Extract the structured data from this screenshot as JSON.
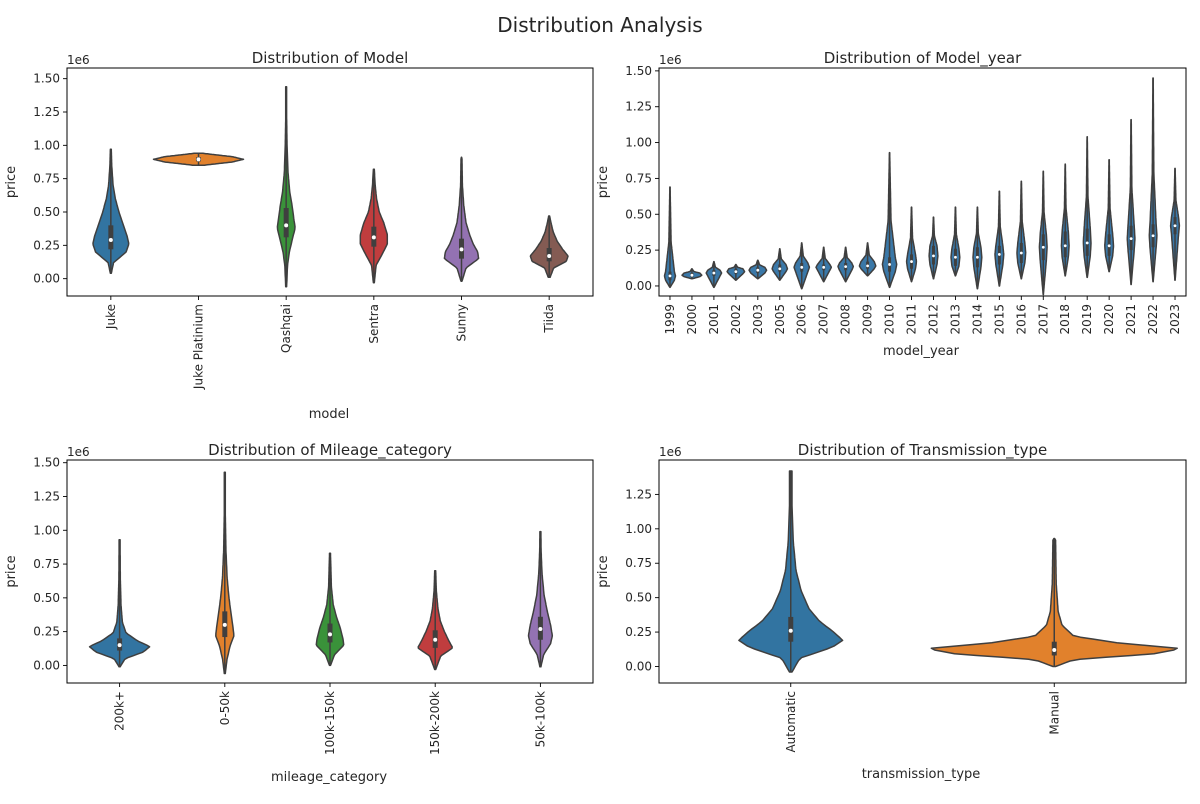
{
  "figure": {
    "title": "Distribution Analysis"
  },
  "chart_data": [
    {
      "type": "violin",
      "title": "Distribution of Model",
      "xlabel": "model",
      "ylabel": "price",
      "y_offset_text": "1e6",
      "ylim": [
        -0.13,
        1.58
      ],
      "yticks": [
        0.0,
        0.25,
        0.5,
        0.75,
        1.0,
        1.25,
        1.5
      ],
      "ytick_labels": [
        "0.00",
        "0.25",
        "0.50",
        "0.75",
        "1.00",
        "1.25",
        "1.50"
      ],
      "categories": [
        "Juke",
        "Juke Platinium",
        "Qashqai",
        "Sentra",
        "Sunny",
        "Tiida"
      ],
      "colors": [
        "#3274a1",
        "#e1812c",
        "#3a923a",
        "#c03d3e",
        "#9372b2",
        "#845b53"
      ],
      "violins": [
        {
          "min": 0.04,
          "max": 0.97,
          "q1": 0.22,
          "median": 0.29,
          "q3": 0.4,
          "profile": [
            [
              0.04,
              0.01
            ],
            [
              0.12,
              0.06
            ],
            [
              0.2,
              0.34
            ],
            [
              0.26,
              0.4
            ],
            [
              0.32,
              0.36
            ],
            [
              0.4,
              0.28
            ],
            [
              0.5,
              0.18
            ],
            [
              0.6,
              0.1
            ],
            [
              0.7,
              0.05
            ],
            [
              0.85,
              0.02
            ],
            [
              0.97,
              0.01
            ]
          ]
        },
        {
          "min": 0.85,
          "max": 0.94,
          "q1": 0.88,
          "median": 0.895,
          "q3": 0.91,
          "profile": [
            [
              0.85,
              0.1
            ],
            [
              0.875,
              0.75
            ],
            [
              0.895,
              1.0
            ],
            [
              0.915,
              0.75
            ],
            [
              0.94,
              0.1
            ]
          ]
        },
        {
          "min": -0.06,
          "max": 1.44,
          "q1": 0.31,
          "median": 0.4,
          "q3": 0.53,
          "profile": [
            [
              -0.06,
              0.01
            ],
            [
              0.1,
              0.03
            ],
            [
              0.2,
              0.07
            ],
            [
              0.3,
              0.14
            ],
            [
              0.38,
              0.2
            ],
            [
              0.45,
              0.17
            ],
            [
              0.55,
              0.13
            ],
            [
              0.65,
              0.08
            ],
            [
              0.8,
              0.04
            ],
            [
              1.0,
              0.02
            ],
            [
              1.2,
              0.01
            ],
            [
              1.44,
              0.01
            ]
          ]
        },
        {
          "min": -0.03,
          "max": 0.82,
          "q1": 0.24,
          "median": 0.31,
          "q3": 0.39,
          "profile": [
            [
              -0.03,
              0.01
            ],
            [
              0.1,
              0.05
            ],
            [
              0.18,
              0.18
            ],
            [
              0.26,
              0.3
            ],
            [
              0.33,
              0.3
            ],
            [
              0.42,
              0.22
            ],
            [
              0.5,
              0.12
            ],
            [
              0.6,
              0.06
            ],
            [
              0.7,
              0.03
            ],
            [
              0.82,
              0.01
            ]
          ]
        },
        {
          "min": -0.02,
          "max": 0.91,
          "q1": 0.15,
          "median": 0.22,
          "q3": 0.3,
          "profile": [
            [
              -0.02,
              0.01
            ],
            [
              0.08,
              0.1
            ],
            [
              0.15,
              0.38
            ],
            [
              0.2,
              0.36
            ],
            [
              0.26,
              0.26
            ],
            [
              0.33,
              0.18
            ],
            [
              0.42,
              0.1
            ],
            [
              0.55,
              0.05
            ],
            [
              0.7,
              0.02
            ],
            [
              0.91,
              0.01
            ]
          ]
        },
        {
          "min": 0.01,
          "max": 0.47,
          "q1": 0.13,
          "median": 0.17,
          "q3": 0.23,
          "profile": [
            [
              0.01,
              0.02
            ],
            [
              0.08,
              0.1
            ],
            [
              0.13,
              0.38
            ],
            [
              0.17,
              0.42
            ],
            [
              0.22,
              0.3
            ],
            [
              0.28,
              0.18
            ],
            [
              0.35,
              0.09
            ],
            [
              0.42,
              0.04
            ],
            [
              0.47,
              0.01
            ]
          ]
        }
      ]
    },
    {
      "type": "violin",
      "title": "Distribution of Model_year",
      "xlabel": "model_year",
      "ylabel": "price",
      "y_offset_text": "1e6",
      "ylim": [
        -0.07,
        1.52
      ],
      "yticks": [
        0.0,
        0.25,
        0.5,
        0.75,
        1.0,
        1.25,
        1.5
      ],
      "ytick_labels": [
        "0.00",
        "0.25",
        "0.50",
        "0.75",
        "1.00",
        "1.25",
        "1.50"
      ],
      "categories": [
        "1999",
        "2000",
        "2001",
        "2002",
        "2003",
        "2005",
        "2006",
        "2007",
        "2008",
        "2009",
        "2010",
        "2011",
        "2012",
        "2013",
        "2014",
        "2015",
        "2016",
        "2017",
        "2018",
        "2019",
        "2020",
        "2021",
        "2022",
        "2023"
      ],
      "violins": [
        {
          "min": -0.01,
          "max": 0.69,
          "median": 0.07,
          "q1": 0.04,
          "q3": 0.1,
          "width": 0.5
        },
        {
          "min": 0.05,
          "max": 0.12,
          "median": 0.075,
          "q1": 0.065,
          "q3": 0.09,
          "width": 0.9
        },
        {
          "min": -0.01,
          "max": 0.17,
          "median": 0.09,
          "q1": 0.07,
          "q3": 0.11,
          "width": 0.7
        },
        {
          "min": 0.04,
          "max": 0.15,
          "median": 0.1,
          "q1": 0.085,
          "q3": 0.12,
          "width": 0.8
        },
        {
          "min": 0.05,
          "max": 0.18,
          "median": 0.11,
          "q1": 0.09,
          "q3": 0.13,
          "width": 0.8
        },
        {
          "min": 0.04,
          "max": 0.26,
          "median": 0.12,
          "q1": 0.1,
          "q3": 0.15,
          "width": 0.7
        },
        {
          "min": -0.02,
          "max": 0.3,
          "median": 0.13,
          "q1": 0.1,
          "q3": 0.16,
          "width": 0.7
        },
        {
          "min": 0.03,
          "max": 0.27,
          "median": 0.13,
          "q1": 0.11,
          "q3": 0.15,
          "width": 0.7
        },
        {
          "min": 0.03,
          "max": 0.27,
          "median": 0.135,
          "q1": 0.11,
          "q3": 0.16,
          "width": 0.7
        },
        {
          "min": 0.07,
          "max": 0.3,
          "median": 0.14,
          "q1": 0.12,
          "q3": 0.17,
          "width": 0.75
        },
        {
          "min": -0.01,
          "max": 0.93,
          "median": 0.15,
          "q1": 0.1,
          "q3": 0.2,
          "width": 0.65
        },
        {
          "min": 0.03,
          "max": 0.55,
          "median": 0.17,
          "q1": 0.12,
          "q3": 0.22,
          "width": 0.45
        },
        {
          "min": 0.05,
          "max": 0.48,
          "median": 0.21,
          "q1": 0.15,
          "q3": 0.28,
          "width": 0.4
        },
        {
          "min": 0.07,
          "max": 0.55,
          "median": 0.2,
          "q1": 0.14,
          "q3": 0.26,
          "width": 0.4
        },
        {
          "min": -0.02,
          "max": 0.55,
          "median": 0.2,
          "q1": 0.13,
          "q3": 0.27,
          "width": 0.4
        },
        {
          "min": 0.0,
          "max": 0.66,
          "median": 0.22,
          "q1": 0.15,
          "q3": 0.28,
          "width": 0.4
        },
        {
          "min": 0.05,
          "max": 0.73,
          "median": 0.23,
          "q1": 0.16,
          "q3": 0.3,
          "width": 0.4
        },
        {
          "min": -0.06,
          "max": 0.8,
          "median": 0.27,
          "q1": 0.18,
          "q3": 0.36,
          "width": 0.35
        },
        {
          "min": 0.07,
          "max": 0.85,
          "median": 0.28,
          "q1": 0.2,
          "q3": 0.38,
          "width": 0.35
        },
        {
          "min": 0.06,
          "max": 1.04,
          "median": 0.3,
          "q1": 0.21,
          "q3": 0.4,
          "width": 0.35
        },
        {
          "min": 0.1,
          "max": 0.88,
          "median": 0.28,
          "q1": 0.21,
          "q3": 0.36,
          "width": 0.4
        },
        {
          "min": 0.01,
          "max": 1.16,
          "median": 0.33,
          "q1": 0.25,
          "q3": 0.42,
          "width": 0.35
        },
        {
          "min": 0.03,
          "max": 1.45,
          "median": 0.35,
          "q1": 0.27,
          "q3": 0.43,
          "width": 0.35
        },
        {
          "min": 0.04,
          "max": 0.82,
          "median": 0.42,
          "q1": 0.36,
          "q3": 0.48,
          "width": 0.4
        }
      ]
    },
    {
      "type": "violin",
      "title": "Distribution of Mileage_category",
      "xlabel": "mileage_category",
      "ylabel": "price",
      "y_offset_text": "1e6",
      "ylim": [
        -0.13,
        1.52
      ],
      "yticks": [
        0.0,
        0.25,
        0.5,
        0.75,
        1.0,
        1.25,
        1.5
      ],
      "ytick_labels": [
        "0.00",
        "0.25",
        "0.50",
        "0.75",
        "1.00",
        "1.25",
        "1.50"
      ],
      "categories": [
        "200k+",
        "0-50k",
        "100k-150k",
        "150k-200k",
        "50k-100k"
      ],
      "colors": [
        "#3274a1",
        "#e1812c",
        "#3a923a",
        "#c03d3e",
        "#9372b2"
      ],
      "violins": [
        {
          "min": -0.01,
          "max": 0.93,
          "q1": 0.11,
          "median": 0.15,
          "q3": 0.2,
          "profile": [
            [
              -0.01,
              0.01
            ],
            [
              0.05,
              0.12
            ],
            [
              0.1,
              0.52
            ],
            [
              0.14,
              0.66
            ],
            [
              0.18,
              0.4
            ],
            [
              0.24,
              0.14
            ],
            [
              0.32,
              0.06
            ],
            [
              0.45,
              0.03
            ],
            [
              0.65,
              0.015
            ],
            [
              0.93,
              0.01
            ]
          ]
        },
        {
          "min": -0.06,
          "max": 1.43,
          "q1": 0.21,
          "median": 0.3,
          "q3": 0.4,
          "profile": [
            [
              -0.06,
              0.01
            ],
            [
              0.05,
              0.05
            ],
            [
              0.15,
              0.12
            ],
            [
              0.22,
              0.2
            ],
            [
              0.3,
              0.17
            ],
            [
              0.4,
              0.13
            ],
            [
              0.5,
              0.09
            ],
            [
              0.65,
              0.05
            ],
            [
              0.85,
              0.025
            ],
            [
              1.1,
              0.012
            ],
            [
              1.43,
              0.01
            ]
          ]
        },
        {
          "min": 0.0,
          "max": 0.83,
          "q1": 0.17,
          "median": 0.23,
          "q3": 0.31,
          "profile": [
            [
              0.0,
              0.01
            ],
            [
              0.08,
              0.1
            ],
            [
              0.15,
              0.3
            ],
            [
              0.2,
              0.28
            ],
            [
              0.28,
              0.22
            ],
            [
              0.36,
              0.14
            ],
            [
              0.45,
              0.07
            ],
            [
              0.58,
              0.03
            ],
            [
              0.83,
              0.01
            ]
          ]
        },
        {
          "min": -0.03,
          "max": 0.7,
          "q1": 0.13,
          "median": 0.19,
          "q3": 0.26,
          "profile": [
            [
              -0.03,
              0.01
            ],
            [
              0.07,
              0.12
            ],
            [
              0.13,
              0.38
            ],
            [
              0.18,
              0.3
            ],
            [
              0.25,
              0.2
            ],
            [
              0.33,
              0.11
            ],
            [
              0.42,
              0.06
            ],
            [
              0.55,
              0.025
            ],
            [
              0.7,
              0.01
            ]
          ]
        },
        {
          "min": -0.01,
          "max": 0.99,
          "q1": 0.19,
          "median": 0.27,
          "q3": 0.36,
          "profile": [
            [
              -0.01,
              0.01
            ],
            [
              0.08,
              0.07
            ],
            [
              0.16,
              0.22
            ],
            [
              0.22,
              0.26
            ],
            [
              0.3,
              0.22
            ],
            [
              0.4,
              0.15
            ],
            [
              0.52,
              0.08
            ],
            [
              0.68,
              0.035
            ],
            [
              0.85,
              0.015
            ],
            [
              0.99,
              0.01
            ]
          ]
        }
      ]
    },
    {
      "type": "violin",
      "title": "Distribution of Transmission_type",
      "xlabel": "transmission_type",
      "ylabel": "price",
      "y_offset_text": "1e6",
      "ylim": [
        -0.12,
        1.5
      ],
      "yticks": [
        0.0,
        0.25,
        0.5,
        0.75,
        1.0,
        1.25
      ],
      "ytick_labels": [
        "0.00",
        "0.25",
        "0.50",
        "0.75",
        "1.00",
        "1.25"
      ],
      "categories": [
        "Automatic",
        "Manual"
      ],
      "colors": [
        "#3274a1",
        "#e1812c"
      ],
      "violins": [
        {
          "min": -0.04,
          "max": 1.42,
          "q1": 0.18,
          "median": 0.26,
          "q3": 0.36,
          "profile": [
            [
              -0.04,
              0.01
            ],
            [
              0.06,
              0.07
            ],
            [
              0.14,
              0.32
            ],
            [
              0.19,
              0.4
            ],
            [
              0.25,
              0.33
            ],
            [
              0.33,
              0.22
            ],
            [
              0.42,
              0.14
            ],
            [
              0.55,
              0.08
            ],
            [
              0.7,
              0.04
            ],
            [
              0.9,
              0.02
            ],
            [
              1.15,
              0.01
            ],
            [
              1.42,
              0.01
            ]
          ]
        },
        {
          "min": 0.0,
          "max": 0.93,
          "q1": 0.08,
          "median": 0.12,
          "q3": 0.18,
          "profile": [
            [
              0.0,
              0.01
            ],
            [
              0.05,
              0.15
            ],
            [
              0.09,
              0.75
            ],
            [
              0.13,
              0.98
            ],
            [
              0.17,
              0.5
            ],
            [
              0.22,
              0.15
            ],
            [
              0.3,
              0.06
            ],
            [
              0.4,
              0.03
            ],
            [
              0.6,
              0.015
            ],
            [
              0.93,
              0.01
            ]
          ]
        }
      ]
    }
  ]
}
